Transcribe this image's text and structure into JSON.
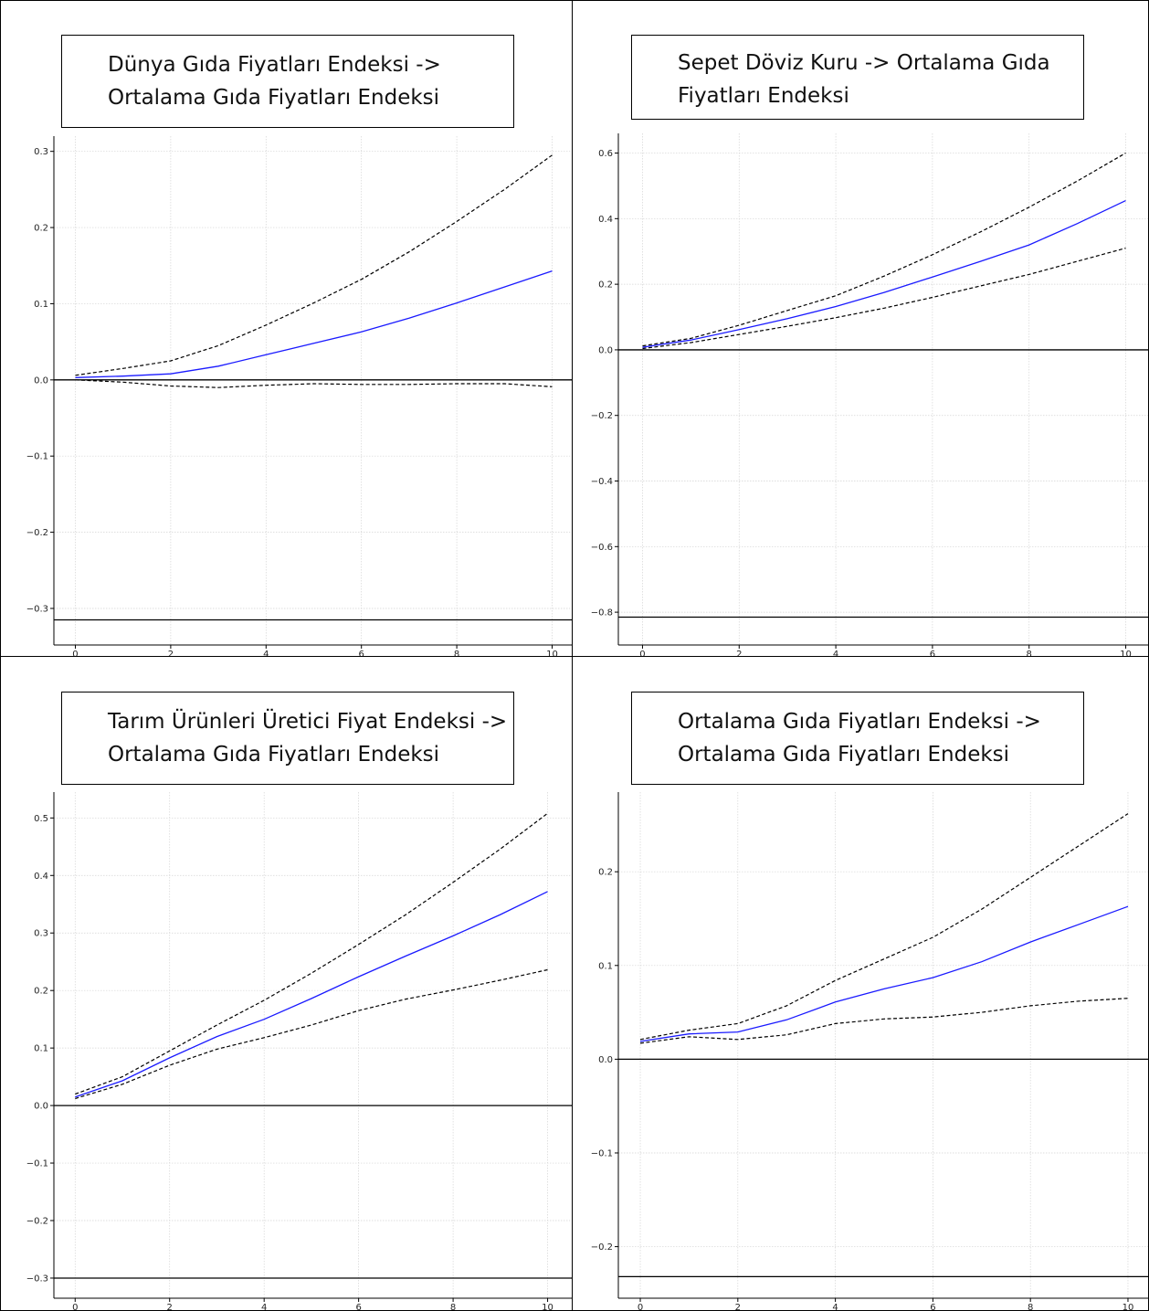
{
  "chart_data": [
    {
      "type": "line",
      "title_lines": [
        "Dünya Gıda Fiyatları Endeksi ->",
        "Ortalama Gıda Fiyatları Endeksi"
      ],
      "xlabel": "",
      "ylabel": "",
      "xlim": [
        -0.45,
        10.45
      ],
      "ylim": [
        -0.348,
        0.32
      ],
      "xticks": [
        0,
        2,
        4,
        6,
        8,
        10
      ],
      "yticks": [
        -0.3,
        -0.2,
        -0.1,
        0.0,
        0.1,
        0.2,
        0.3
      ],
      "ytick_labels": [
        "−0.3",
        "−0.2",
        "−0.1",
        "0.0",
        "0.1",
        "0.2",
        "0.3"
      ],
      "grid": true,
      "hlines": [
        0.0,
        -0.315
      ],
      "x": [
        0,
        1,
        2,
        3,
        4,
        5,
        6,
        7,
        8,
        9,
        10
      ],
      "series": [
        {
          "style": "solid",
          "color": "#1a1aff",
          "values": [
            0.003,
            0.005,
            0.008,
            0.018,
            0.033,
            0.048,
            0.063,
            0.081,
            0.101,
            0.122,
            0.143
          ]
        },
        {
          "style": "dashed",
          "color": "#000000",
          "values": [
            0.006,
            0.015,
            0.025,
            0.045,
            0.072,
            0.101,
            0.132,
            0.168,
            0.208,
            0.25,
            0.295
          ]
        },
        {
          "style": "dashed",
          "color": "#000000",
          "values": [
            0.0,
            -0.003,
            -0.008,
            -0.01,
            -0.007,
            -0.005,
            -0.006,
            -0.006,
            -0.005,
            -0.005,
            -0.009
          ]
        }
      ]
    },
    {
      "type": "line",
      "title_lines": [
        "Sepet Döviz Kuru -> Ortalama Gıda",
        "Fiyatları Endeksi"
      ],
      "xlabel": "",
      "ylabel": "",
      "xlim": [
        -0.5,
        10.5
      ],
      "ylim": [
        -0.9,
        0.66
      ],
      "xticks": [
        0,
        2,
        4,
        6,
        8,
        10
      ],
      "yticks": [
        -0.8,
        -0.6,
        -0.4,
        -0.2,
        0.0,
        0.2,
        0.4,
        0.6
      ],
      "ytick_labels": [
        "−0.8",
        "−0.6",
        "−0.4",
        "−0.2",
        "0.0",
        "0.2",
        "0.4",
        "0.6"
      ],
      "grid": true,
      "hlines": [
        0.0,
        -0.815
      ],
      "x": [
        0,
        1,
        2,
        3,
        4,
        5,
        6,
        7,
        8,
        9,
        10
      ],
      "series": [
        {
          "style": "solid",
          "color": "#1a1aff",
          "values": [
            0.008,
            0.03,
            0.062,
            0.095,
            0.132,
            0.175,
            0.222,
            0.27,
            0.32,
            0.385,
            0.455
          ]
        },
        {
          "style": "dashed",
          "color": "#000000",
          "values": [
            0.012,
            0.035,
            0.075,
            0.12,
            0.165,
            0.225,
            0.29,
            0.36,
            0.435,
            0.515,
            0.6
          ]
        },
        {
          "style": "dashed",
          "color": "#000000",
          "values": [
            0.004,
            0.022,
            0.047,
            0.072,
            0.098,
            0.127,
            0.16,
            0.195,
            0.23,
            0.27,
            0.31
          ]
        }
      ]
    },
    {
      "type": "line",
      "title_lines": [
        "Tarım Ürünleri Üretici Fiyat Endeksi ->",
        "Ortalama Gıda Fiyatları Endeksi"
      ],
      "xlabel": "",
      "ylabel": "",
      "xlim": [
        -0.45,
        10.55
      ],
      "ylim": [
        -0.335,
        0.545
      ],
      "xticks": [
        0,
        2,
        4,
        6,
        8,
        10
      ],
      "yticks": [
        -0.3,
        -0.2,
        -0.1,
        0.0,
        0.1,
        0.2,
        0.3,
        0.4,
        0.5
      ],
      "ytick_labels": [
        "−0.3",
        "−0.2",
        "−0.1",
        "0.0",
        "0.1",
        "0.2",
        "0.3",
        "0.4",
        "0.5"
      ],
      "grid": true,
      "hlines": [
        0.0,
        -0.3
      ],
      "x": [
        0,
        1,
        2,
        3,
        4,
        5,
        6,
        7,
        8,
        9,
        10
      ],
      "series": [
        {
          "style": "solid",
          "color": "#1a1aff",
          "values": [
            0.015,
            0.043,
            0.083,
            0.12,
            0.15,
            0.186,
            0.224,
            0.26,
            0.295,
            0.332,
            0.372
          ]
        },
        {
          "style": "dashed",
          "color": "#000000",
          "values": [
            0.02,
            0.05,
            0.095,
            0.14,
            0.183,
            0.23,
            0.28,
            0.332,
            0.388,
            0.446,
            0.508
          ]
        },
        {
          "style": "dashed",
          "color": "#000000",
          "values": [
            0.012,
            0.037,
            0.07,
            0.098,
            0.118,
            0.14,
            0.165,
            0.185,
            0.201,
            0.218,
            0.236
          ]
        }
      ]
    },
    {
      "type": "line",
      "title_lines": [
        "Ortalama Gıda Fiyatları Endeksi ->",
        "Ortalama Gıda Fiyatları Endeksi"
      ],
      "xlabel": "",
      "ylabel": "",
      "xlim": [
        -0.45,
        10.45
      ],
      "ylim": [
        -0.255,
        0.285
      ],
      "xticks": [
        0,
        2,
        4,
        6,
        8,
        10
      ],
      "yticks": [
        -0.2,
        -0.1,
        0.0,
        0.1,
        0.2
      ],
      "ytick_labels": [
        "−0.2",
        "−0.1",
        "0.0",
        "0.1",
        "0.2"
      ],
      "grid": true,
      "hlines": [
        0.0,
        -0.232
      ],
      "x": [
        0,
        1,
        2,
        3,
        4,
        5,
        6,
        7,
        8,
        9,
        10
      ],
      "series": [
        {
          "style": "solid",
          "color": "#1a1aff",
          "values": [
            0.019,
            0.027,
            0.029,
            0.042,
            0.061,
            0.075,
            0.087,
            0.104,
            0.125,
            0.144,
            0.163
          ]
        },
        {
          "style": "dashed",
          "color": "#000000",
          "values": [
            0.021,
            0.031,
            0.038,
            0.057,
            0.084,
            0.107,
            0.13,
            0.16,
            0.194,
            0.228,
            0.262
          ]
        },
        {
          "style": "dashed",
          "color": "#000000",
          "values": [
            0.017,
            0.024,
            0.021,
            0.026,
            0.038,
            0.043,
            0.045,
            0.05,
            0.057,
            0.062,
            0.065
          ]
        }
      ]
    }
  ]
}
